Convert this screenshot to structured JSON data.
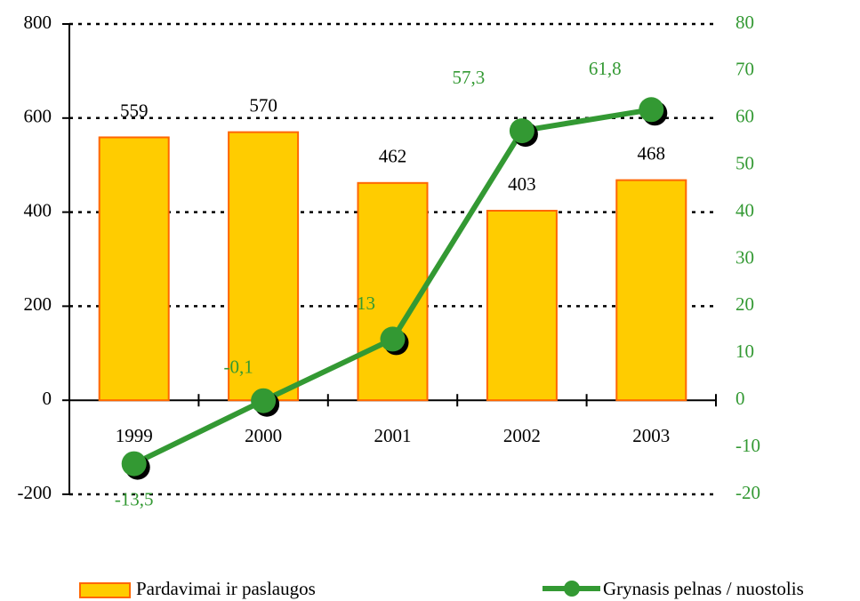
{
  "chart_data": {
    "type": "combo",
    "categories": [
      "1999",
      "2000",
      "2001",
      "2002",
      "2003"
    ],
    "series": [
      {
        "name": "Pardavimai ir paslaugos",
        "type": "bar",
        "color": "#ffcc00",
        "edgecolor": "#ff6600",
        "values": [
          559,
          570,
          462,
          403,
          468
        ]
      },
      {
        "name": "Grynasis pelnas / nuostolis",
        "type": "line",
        "color": "#339933",
        "axis": "y2",
        "values": [
          -13.5,
          -0.1,
          13,
          57.3,
          61.8
        ],
        "value_labels": [
          "-13,5",
          "-0,1",
          "13",
          "57,3",
          "61,8"
        ]
      }
    ],
    "ylim": [
      -200,
      800
    ],
    "yticks": [
      -200,
      0,
      200,
      400,
      600,
      800
    ],
    "y2lim": [
      -20,
      80
    ],
    "y2ticks": [
      -20,
      -10,
      0,
      10,
      20,
      30,
      40,
      50,
      60,
      70,
      80
    ],
    "grid": true,
    "legend": "bottom"
  }
}
